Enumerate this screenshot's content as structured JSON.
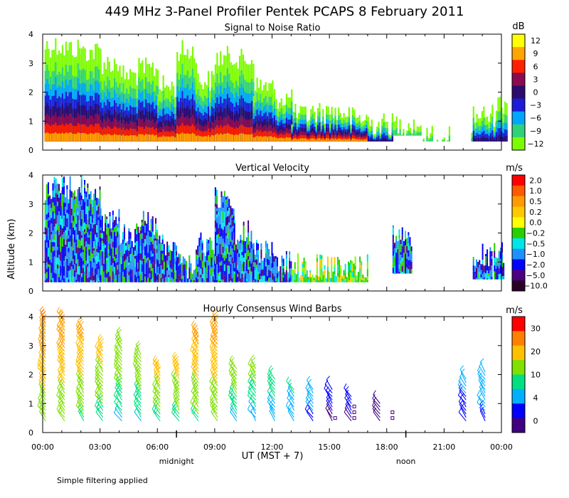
{
  "chart_data": {
    "type": "heatmap",
    "title": "449 MHz 3-Panel Profiler Pentek PCAPS  8 February 2011",
    "ylabel": "Altitude (km)",
    "xlabel": "UT  (MST + 7)",
    "note": "Simple filtering applied",
    "time_markers": [
      {
        "label": "midnight",
        "hour": 7
      },
      {
        "label": "noon",
        "hour": 19
      }
    ],
    "x_range_hours": [
      0,
      24
    ],
    "y_range_km": [
      0,
      4
    ],
    "x_ticks": [
      "00:00",
      "03:00",
      "06:00",
      "09:00",
      "12:00",
      "15:00",
      "18:00",
      "21:00",
      "00:00"
    ],
    "y_ticks": [
      "0",
      "1",
      "2",
      "3",
      "4"
    ],
    "panels": [
      {
        "id": "snr",
        "title": "Signal to Noise Ratio",
        "unit": "dB",
        "colorbar_labels": [
          "12",
          "9",
          "6",
          "3",
          "0",
          "−3",
          "−6",
          "−9",
          "−12"
        ],
        "colorbar_colors": [
          "#ffff00",
          "#ffa500",
          "#ff2000",
          "#8b0a50",
          "#2d0a6e",
          "#1c1cd9",
          "#00a6ff",
          "#2fd27a",
          "#7cfc00"
        ],
        "series": [
          {
            "hour": 0.1,
            "top": 4.0,
            "bottom": 0.3,
            "strength": 1.0
          },
          {
            "hour": 1.0,
            "top": 3.9,
            "bottom": 0.3,
            "strength": 1.0
          },
          {
            "hour": 2.0,
            "top": 3.8,
            "bottom": 0.3,
            "strength": 0.9
          },
          {
            "hour": 3.0,
            "top": 3.4,
            "bottom": 0.3,
            "strength": 0.85
          },
          {
            "hour": 4.0,
            "top": 3.0,
            "bottom": 0.3,
            "strength": 0.85
          },
          {
            "hour": 5.0,
            "top": 3.2,
            "bottom": 0.3,
            "strength": 0.8
          },
          {
            "hour": 6.0,
            "top": 2.6,
            "bottom": 0.3,
            "strength": 0.75
          },
          {
            "hour": 7.0,
            "top": 3.8,
            "bottom": 0.3,
            "strength": 0.6
          },
          {
            "hour": 8.0,
            "top": 2.8,
            "bottom": 0.3,
            "strength": 0.7
          },
          {
            "hour": 9.0,
            "top": 3.6,
            "bottom": 0.3,
            "strength": 1.0
          },
          {
            "hour": 10.0,
            "top": 3.5,
            "bottom": 0.3,
            "strength": 0.85
          },
          {
            "hour": 11.0,
            "top": 2.6,
            "bottom": 0.3,
            "strength": 0.55
          },
          {
            "hour": 12.0,
            "top": 2.2,
            "bottom": 0.3,
            "strength": 0.5
          },
          {
            "hour": 13.0,
            "top": 1.6,
            "bottom": 0.3,
            "strength": 0.45
          },
          {
            "hour": 14.0,
            "top": 1.7,
            "bottom": 0.3,
            "strength": 0.55
          },
          {
            "hour": 15.0,
            "top": 1.7,
            "bottom": 0.3,
            "strength": 0.55
          },
          {
            "hour": 16.0,
            "top": 1.5,
            "bottom": 0.3,
            "strength": 0.5
          },
          {
            "hour": 17.0,
            "top": 1.3,
            "bottom": 0.3,
            "strength": 0.3
          },
          {
            "hour": 18.3,
            "top": 1.3,
            "bottom": 0.5,
            "strength": 0.2
          },
          {
            "hour": 19.8,
            "top": 1.0,
            "bottom": 0.3,
            "strength": 0.05
          },
          {
            "hour": 22.5,
            "top": 1.6,
            "bottom": 0.3,
            "strength": 0.25
          },
          {
            "hour": 23.7,
            "top": 2.0,
            "bottom": 0.3,
            "strength": 0.3
          }
        ]
      },
      {
        "id": "vel",
        "title": "Vertical Velocity",
        "unit": "m/s",
        "colorbar_labels": [
          "2.0",
          "1.0",
          "0.5",
          "0.2",
          "0.0",
          "−0.2",
          "−0.5",
          "−1.0",
          "−2.0",
          "−5.0",
          "−10.0"
        ],
        "colorbar_colors": [
          "#ff0000",
          "#ff5a00",
          "#ff9a00",
          "#ffc800",
          "#ffff00",
          "#27d000",
          "#00e6e6",
          "#1e90ff",
          "#0000ff",
          "#4b0082",
          "#2a0028"
        ],
        "series": [
          {
            "hour": 0.1,
            "top": 4.0,
            "bottom": 0.3
          },
          {
            "hour": 1.0,
            "top": 4.0,
            "bottom": 0.3
          },
          {
            "hour": 2.0,
            "top": 4.0,
            "bottom": 0.3
          },
          {
            "hour": 3.0,
            "top": 2.9,
            "bottom": 0.3
          },
          {
            "hour": 4.0,
            "top": 2.4,
            "bottom": 0.3
          },
          {
            "hour": 5.0,
            "top": 2.8,
            "bottom": 0.3
          },
          {
            "hour": 6.0,
            "top": 2.0,
            "bottom": 0.3
          },
          {
            "hour": 7.0,
            "top": 1.3,
            "bottom": 0.3
          },
          {
            "hour": 8.0,
            "top": 2.1,
            "bottom": 0.3
          },
          {
            "hour": 9.0,
            "top": 3.6,
            "bottom": 0.3
          },
          {
            "hour": 10.0,
            "top": 2.5,
            "bottom": 0.3
          },
          {
            "hour": 11.0,
            "top": 1.8,
            "bottom": 0.3
          },
          {
            "hour": 12.0,
            "top": 1.4,
            "bottom": 0.3
          },
          {
            "hour": 13.0,
            "top": 1.3,
            "bottom": 0.3
          },
          {
            "hour": 14.0,
            "top": 1.3,
            "bottom": 0.3
          },
          {
            "hour": 15.0,
            "top": 1.3,
            "bottom": 0.3
          },
          {
            "hour": 16.0,
            "top": 1.3,
            "bottom": 0.3
          },
          {
            "hour": 18.3,
            "top": 2.4,
            "bottom": 0.6
          },
          {
            "hour": 22.5,
            "top": 1.7,
            "bottom": 0.4
          },
          {
            "hour": 23.6,
            "top": 1.7,
            "bottom": 0.4
          }
        ]
      },
      {
        "id": "wind",
        "title": "Hourly Consensus Wind Barbs",
        "unit": "m/s",
        "colorbar_labels": [
          "30",
          "20",
          "10",
          "4",
          "0"
        ],
        "colorbar_colors": [
          "#ff0000",
          "#ff8000",
          "#ffc000",
          "#80e000",
          "#00e080",
          "#00b0ff",
          "#0000ff",
          "#400080"
        ],
        "barb_columns": [
          {
            "hour": 0.0,
            "top": 3.9,
            "speed": 26
          },
          {
            "hour": 1.0,
            "top": 4.0,
            "speed": 25
          },
          {
            "hour": 2.0,
            "top": 3.6,
            "speed": 22
          },
          {
            "hour": 3.0,
            "top": 3.0,
            "speed": 18
          },
          {
            "hour": 4.0,
            "top": 3.2,
            "speed": 15
          },
          {
            "hour": 5.0,
            "top": 2.8,
            "speed": 15
          },
          {
            "hour": 6.0,
            "top": 2.3,
            "speed": 18
          },
          {
            "hour": 7.0,
            "top": 2.4,
            "speed": 18
          },
          {
            "hour": 8.0,
            "top": 3.5,
            "speed": 22
          },
          {
            "hour": 9.0,
            "top": 3.8,
            "speed": 24
          },
          {
            "hour": 10.0,
            "top": 2.3,
            "speed": 14
          },
          {
            "hour": 11.0,
            "top": 2.3,
            "speed": 12
          },
          {
            "hour": 12.0,
            "top": 1.9,
            "speed": 10
          },
          {
            "hour": 13.0,
            "top": 1.6,
            "speed": 8
          },
          {
            "hour": 14.0,
            "top": 1.5,
            "speed": 6
          },
          {
            "hour": 15.0,
            "top": 1.5,
            "speed": 3
          },
          {
            "hour": 16.0,
            "top": 1.3,
            "speed": 3
          },
          {
            "hour": 17.5,
            "top": 1.1,
            "speed": 2
          },
          {
            "hour": 22.0,
            "top": 1.9,
            "speed": 5
          },
          {
            "hour": 23.0,
            "top": 2.2,
            "speed": 7
          }
        ]
      }
    ]
  }
}
